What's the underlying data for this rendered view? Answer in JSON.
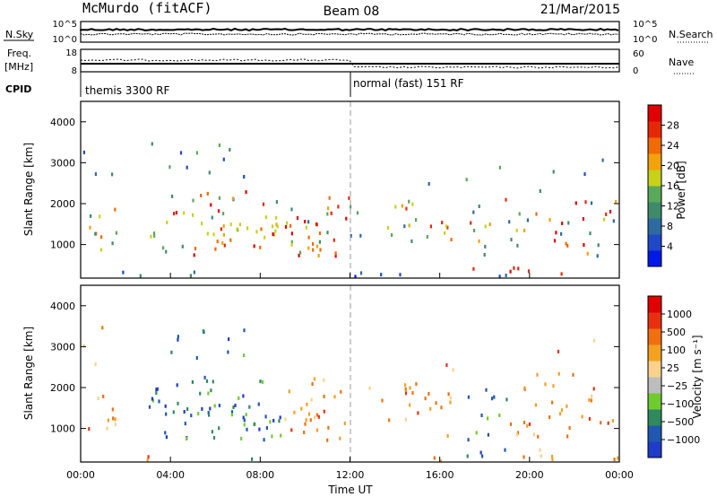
{
  "header": {
    "title": "McMurdo (fitACF)",
    "beam": "Beam 08",
    "date": "21/Mar/2015"
  },
  "panels": {
    "noise": {
      "left_label": "N.Sky",
      "left_ticks": [
        "10^5",
        "10^0"
      ],
      "right_label": "N.Search",
      "right_ticks": [
        "10^5",
        "10^0"
      ]
    },
    "freq": {
      "left_label_top": "Freq.",
      "left_label_bottom": "[MHz]",
      "left_ticks": [
        "18",
        "8"
      ],
      "right_label": "Nave",
      "right_ticks": [
        "60",
        "0"
      ],
      "cpid_label": "CPID",
      "modes": [
        {
          "text": "themis 3300 RF",
          "start_hour": 0
        },
        {
          "text": "normal (fast) 151 RF",
          "start_hour": 12
        }
      ]
    }
  },
  "chart_data": [
    {
      "type": "heatmap",
      "name": "power",
      "ylabel": "Slant Range [km]",
      "xlabel": "Time UT",
      "x_range_hours": [
        0,
        24
      ],
      "ylim": [
        180,
        4500
      ],
      "yticks": [
        1000,
        2000,
        3000,
        4000
      ],
      "xticks": [
        "00:00",
        "04:00",
        "08:00",
        "12:00",
        "16:00",
        "20:00",
        "00:00"
      ],
      "colorbar": {
        "label": "Power [dB]",
        "ticks": [
          "4",
          "8",
          "12",
          "16",
          "20",
          "24",
          "28"
        ],
        "colors": [
          "#0018e8",
          "#1e48c8",
          "#2e6aa0",
          "#3f8a6a",
          "#5aa85a",
          "#c6d21a",
          "#f2a20a",
          "#f06a08",
          "#e62808",
          "#e00000"
        ]
      }
    },
    {
      "type": "heatmap",
      "name": "velocity",
      "ylabel": "Slant Range [km]",
      "xlabel": "Time UT",
      "x_range_hours": [
        0,
        24
      ],
      "ylim": [
        180,
        4500
      ],
      "yticks": [
        1000,
        2000,
        3000,
        4000
      ],
      "xticks": [
        "00:00",
        "04:00",
        "08:00",
        "12:00",
        "16:00",
        "20:00",
        "00:00"
      ],
      "colorbar": {
        "label": "Velocity [m s⁻¹]",
        "ticks": [
          "1000",
          "500",
          "100",
          "25",
          "−25",
          "−100",
          "−500",
          "−1000"
        ],
        "colors": [
          "#1e3cc8",
          "#1e58b0",
          "#2e8a5e",
          "#6ecc2e",
          "#bdbdbd",
          "#f8d28a",
          "#f4a020",
          "#f07010",
          "#e83010",
          "#e00000"
        ]
      }
    }
  ]
}
